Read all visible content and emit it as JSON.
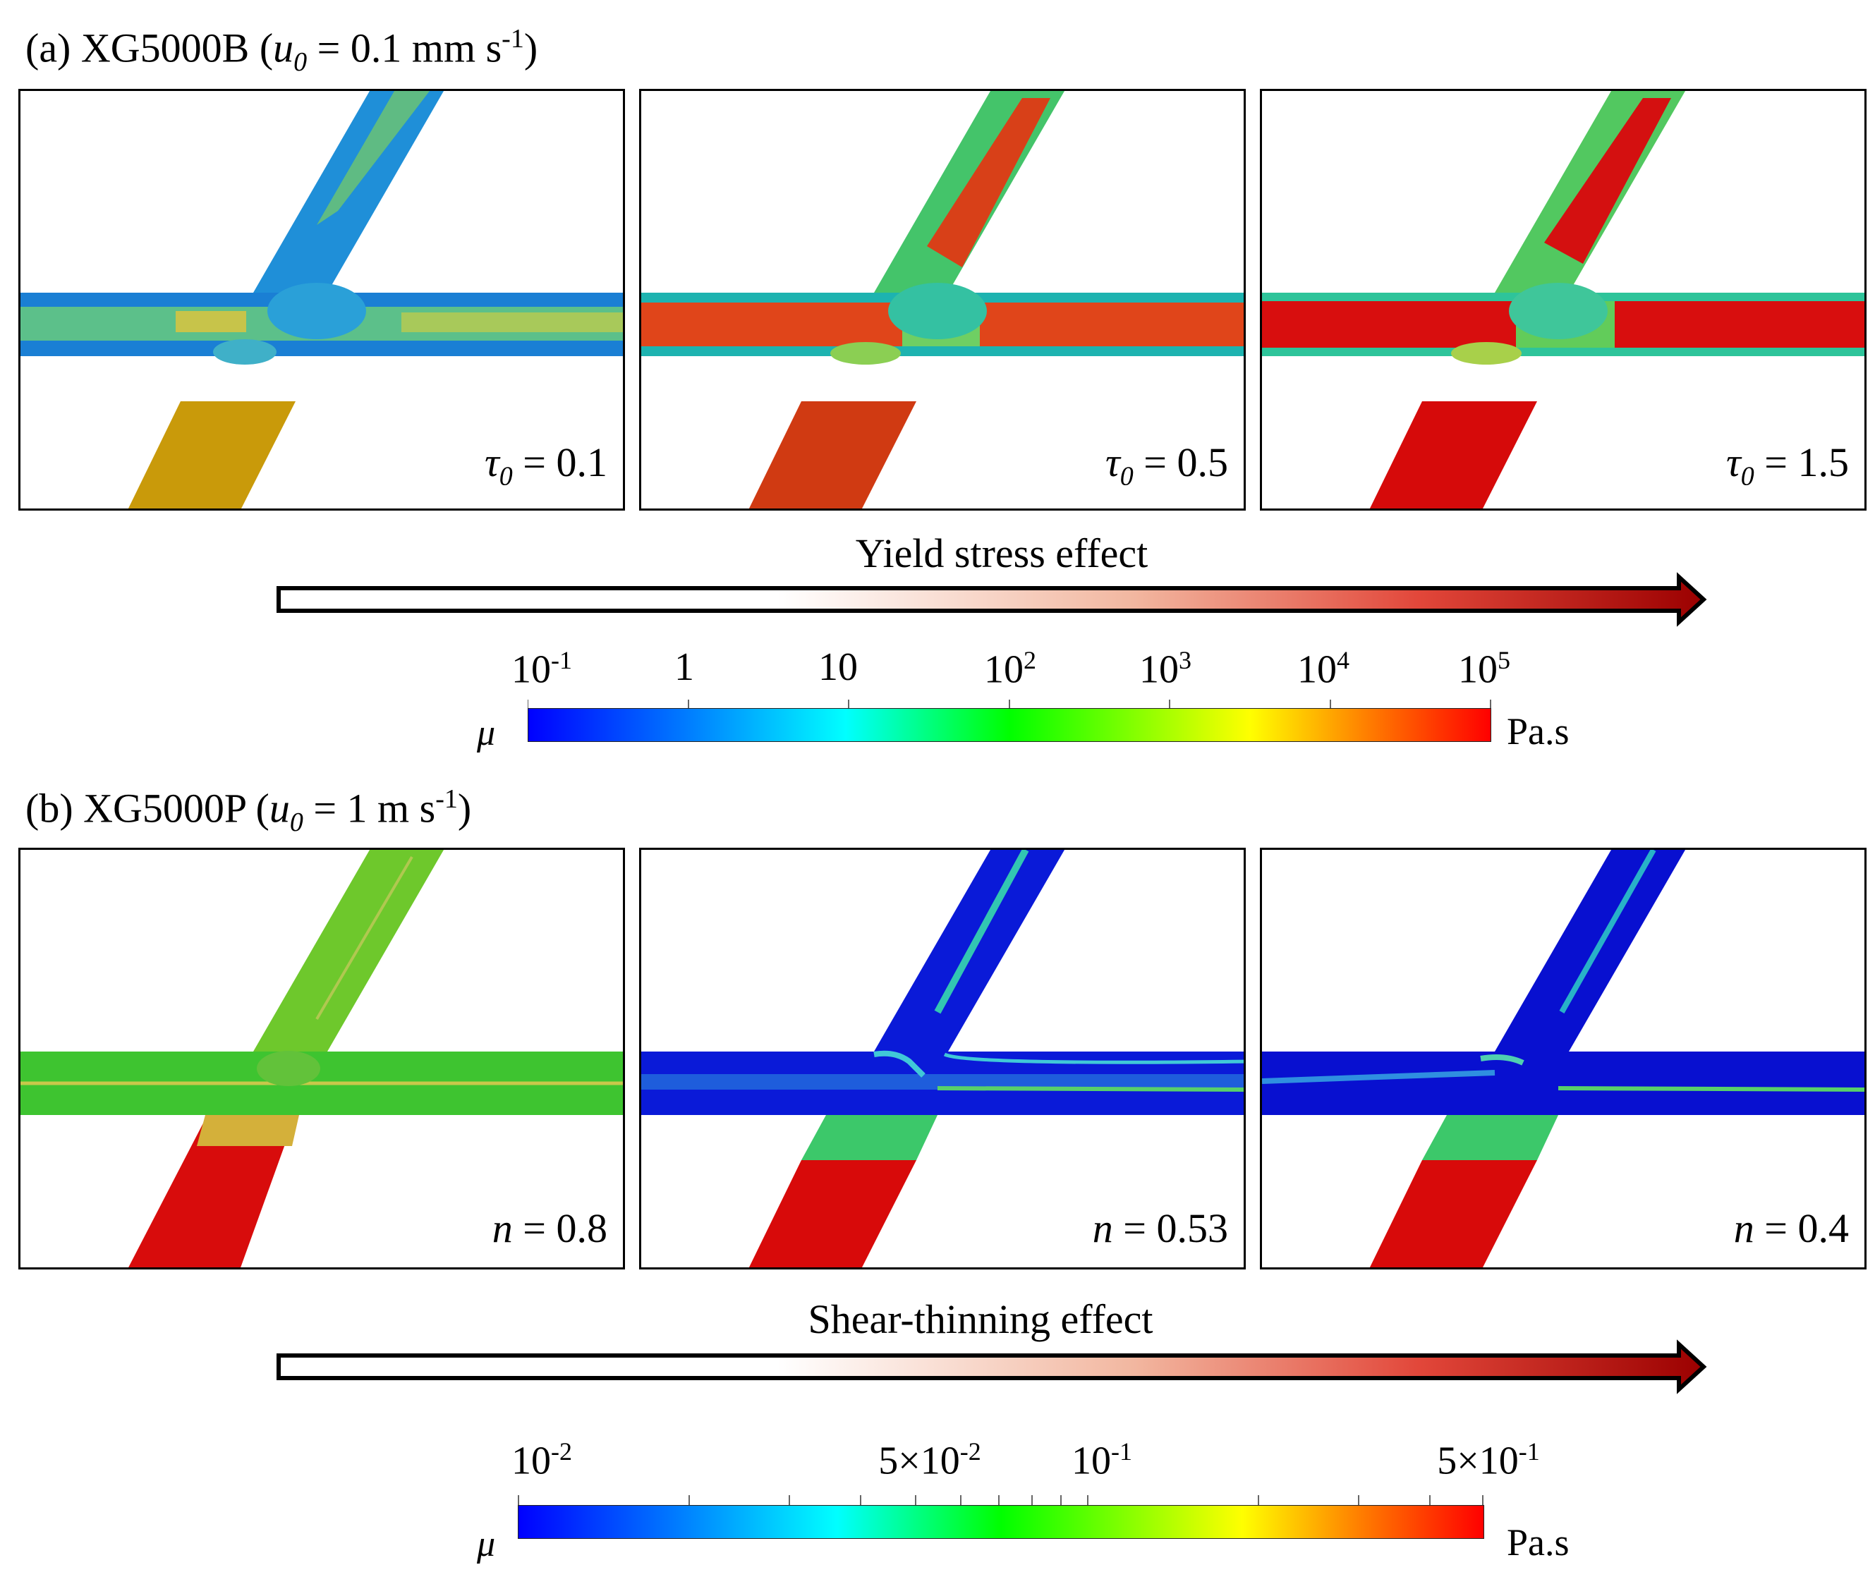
{
  "section_a": {
    "label": "(a) XG5000B (",
    "var": "u",
    "sub": "0",
    "value": " = 0.1 mm s",
    "sup": "-1",
    "close": ")",
    "panels": [
      {
        "symbol": "τ",
        "sub": "0",
        "value": " = 0.1"
      },
      {
        "symbol": "τ",
        "sub": "0",
        "value": " = 0.5"
      },
      {
        "symbol": "τ",
        "sub": "0",
        "value": " = 1.5"
      }
    ],
    "effect": "Yield stress effect",
    "colorbar": {
      "ticks": [
        {
          "base": "10",
          "exp": "-1"
        },
        {
          "base": "1",
          "exp": ""
        },
        {
          "base": "10",
          "exp": ""
        },
        {
          "base": "10",
          "exp": "2"
        },
        {
          "base": "10",
          "exp": "3"
        },
        {
          "base": "10",
          "exp": "4"
        },
        {
          "base": "10",
          "exp": "5"
        }
      ],
      "symbol": "μ",
      "unit": "Pa.s"
    }
  },
  "section_b": {
    "label": "(b) XG5000P (",
    "var": "u",
    "sub": "0",
    "value": " = 1 m s",
    "sup": "-1",
    "close": ")",
    "panels": [
      {
        "symbol": "n",
        "value": " = 0.8"
      },
      {
        "symbol": "n",
        "value": " = 0.53"
      },
      {
        "symbol": "n",
        "value": " = 0.4"
      }
    ],
    "effect": "Shear-thinning effect",
    "colorbar": {
      "ticks": [
        {
          "base": "10",
          "exp": "-2"
        },
        {
          "base": "5×10",
          "exp": "-2"
        },
        {
          "base": "10",
          "exp": "-1"
        },
        {
          "base": "5×10",
          "exp": "-1"
        }
      ],
      "symbol": "μ",
      "unit": "Pa.s"
    }
  },
  "colors": {
    "jet": [
      "#0000ff",
      "#0080ff",
      "#00ffff",
      "#00ff00",
      "#ffff00",
      "#ff8000",
      "#ff0000"
    ],
    "arrow_start": "#ffffff",
    "arrow_end": "#9b0000"
  }
}
